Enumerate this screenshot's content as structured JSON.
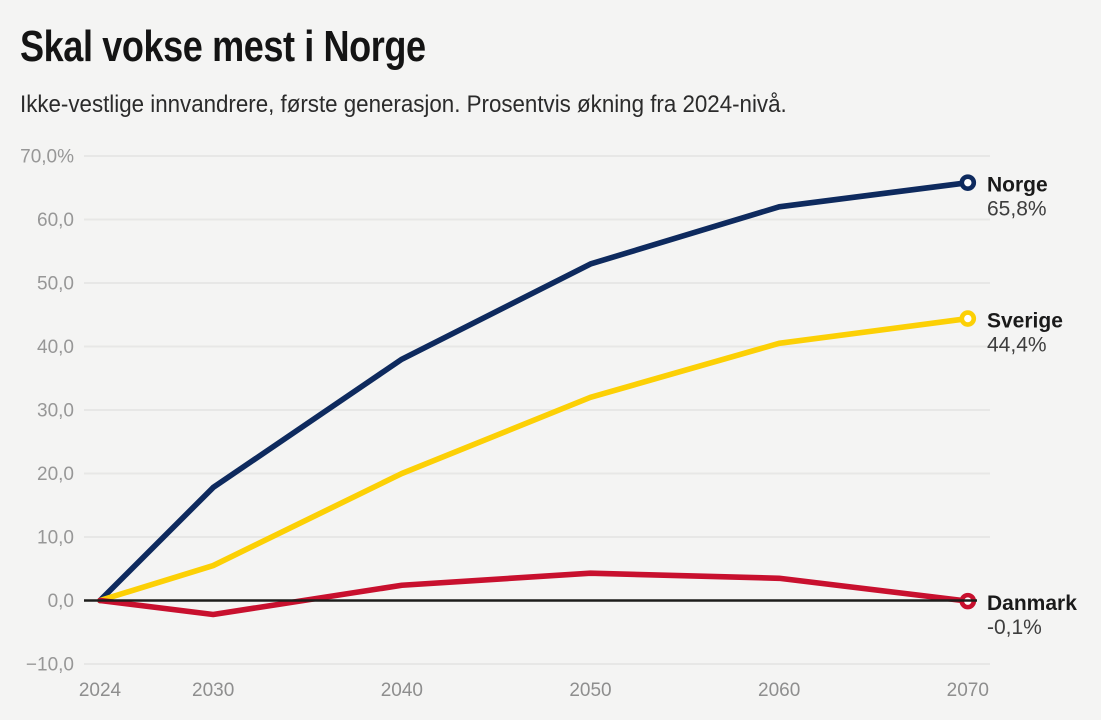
{
  "header": {
    "title": "Skal vokse mest i Norge",
    "subtitle": "Ikke-vestlige innvandrere, første generasjon. Prosentvis økning fra 2024-nivå."
  },
  "colors": {
    "background": "#f4f4f3",
    "title_text": "#141414",
    "subtitle_text": "#2b2b2b",
    "gridline": "#e7e7e6",
    "zero_line": "#1d1d1b",
    "y_tick_label": "#979797",
    "x_tick_label": "#8e8e8e",
    "series_name_label": "#1a1a1a",
    "series_value_label": "#3e3e3e",
    "marker_fill": "#ffffff"
  },
  "chart_data": {
    "type": "line",
    "title": "Skal vokse mest i Norge",
    "subtitle": "Ikke-vestlige innvandrere, første generasjon. Prosentvis økning fra 2024-nivå.",
    "x": [
      2024,
      2030,
      2040,
      2050,
      2060,
      2070
    ],
    "x_tick_labels": [
      "2024",
      "2030",
      "2040",
      "2050",
      "2060",
      "2070"
    ],
    "y_ticks": [
      70,
      60,
      50,
      40,
      30,
      20,
      10,
      0,
      -10
    ],
    "y_tick_labels": [
      "70,0%",
      "60,0",
      "50,0",
      "40,0",
      "30,0",
      "20,0",
      "10,0",
      "0,0",
      "−10,0"
    ],
    "ylim": [
      -10,
      70
    ],
    "xlabel": "",
    "ylabel": "",
    "grid": "horizontal-only",
    "zero_baseline": true,
    "legend_position": "end-of-line-labels-right",
    "series": [
      {
        "name": "Norge",
        "color": "#0e2a5e",
        "values": [
          0,
          17.8,
          38.0,
          53.0,
          62.0,
          65.8
        ],
        "end_label": "Norge",
        "end_value_label": "65,8%"
      },
      {
        "name": "Sverige",
        "color": "#fcd005",
        "values": [
          0,
          5.5,
          20.0,
          32.0,
          40.5,
          44.4
        ],
        "end_label": "Sverige",
        "end_value_label": "44,4%"
      },
      {
        "name": "Danmark",
        "color": "#c8102e",
        "values": [
          0,
          -2.2,
          2.4,
          4.3,
          3.5,
          -0.1
        ],
        "end_label": "Danmark",
        "end_value_label": "-0,1%"
      }
    ]
  }
}
